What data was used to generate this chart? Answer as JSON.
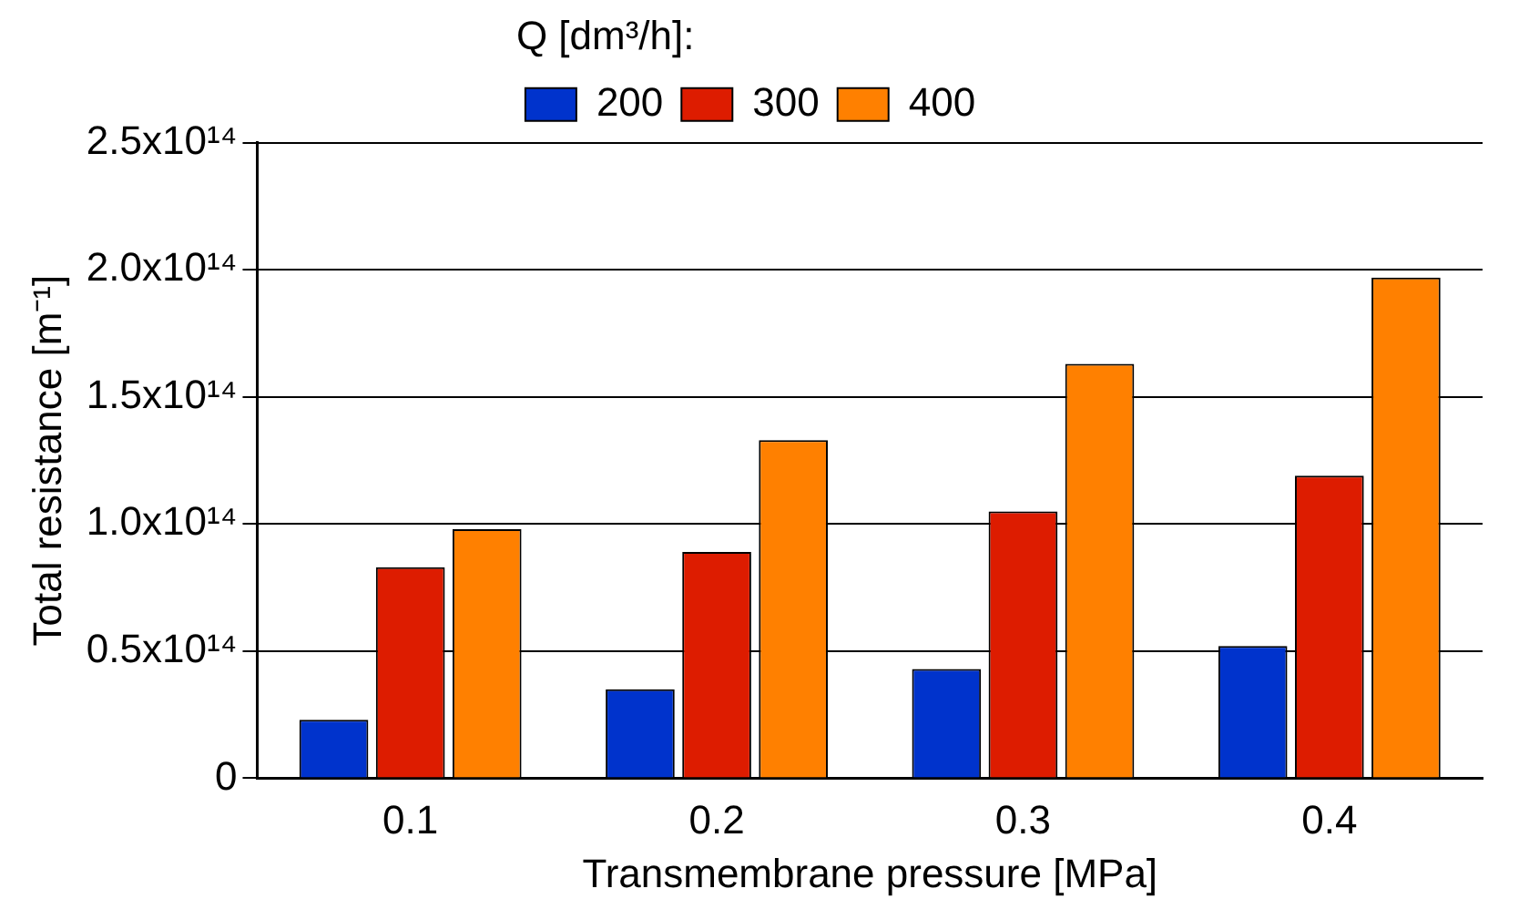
{
  "chart_data": {
    "type": "bar",
    "xlabel": "Transmembrane pressure [MPa]",
    "ylabel": "Total resistance [m⁻¹]",
    "legend_title": "Q [dm³/h]:",
    "legend": "top",
    "categories": [
      "0.1",
      "0.2",
      "0.3",
      "0.4"
    ],
    "series": [
      {
        "name": "200",
        "color": "#0033cc",
        "values": [
          23000000000000.0,
          35000000000000.0,
          43000000000000.0,
          52000000000000.0
        ]
      },
      {
        "name": "300",
        "color": "#dd1c00",
        "values": [
          83000000000000.0,
          89000000000000.0,
          105000000000000.0,
          119000000000000.0
        ]
      },
      {
        "name": "400",
        "color": "#ff8000",
        "values": [
          98000000000000.0,
          133000000000000.0,
          163000000000000.0,
          197000000000000.0
        ]
      }
    ],
    "ylim": [
      0,
      250000000000000.0
    ],
    "yticks": [
      0,
      {
        "value": 50000000000000.0,
        "label": "0.5x10¹⁴"
      },
      {
        "value": 100000000000000.0,
        "label": "1.0x10¹⁴"
      },
      {
        "value": 150000000000000.0,
        "label": "1.5x10¹⁴"
      },
      {
        "value": 200000000000000.0,
        "label": "2.0x10¹⁴"
      },
      {
        "value": 250000000000000.0,
        "label": "2.5x10¹⁴"
      }
    ],
    "grid": "y"
  }
}
